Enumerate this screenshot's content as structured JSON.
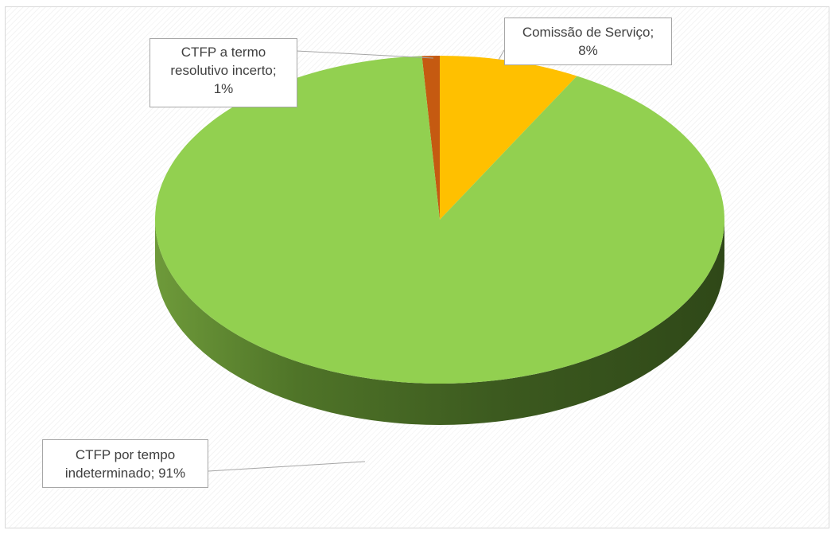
{
  "chart_data": {
    "type": "pie",
    "title": "",
    "labels": [
      "CTFP a termo resolutivo incerto",
      "Comissão de Serviço",
      "CTFP por tempo indeterminado"
    ],
    "values": [
      1,
      8,
      91
    ],
    "data_labels": [
      "CTFP a termo\nresolutivo incerto;\n1%",
      "Comissão de Serviço;\n8%",
      "CTFP por tempo\nindeterminado; 91%"
    ],
    "colors": [
      "#c55a11",
      "#ffc000",
      "#92d050"
    ],
    "legend": "none",
    "style": "3d"
  }
}
